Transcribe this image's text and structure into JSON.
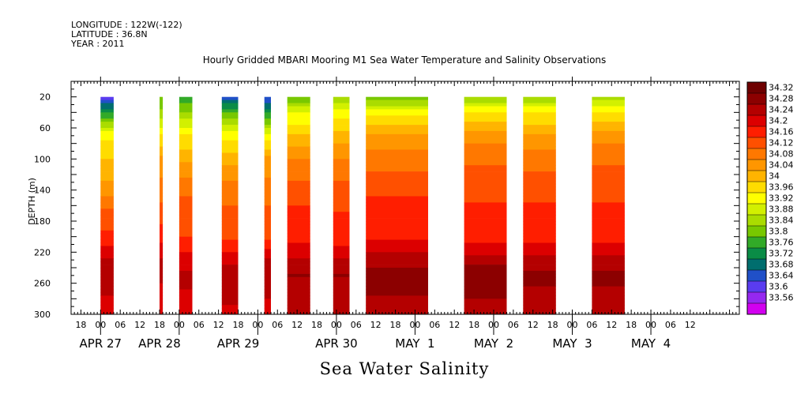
{
  "header": {
    "longitude": "LONGITUDE : 122W(-122)",
    "latitude": "LATITUDE : 36.8N",
    "year": "YEAR : 2011"
  },
  "chart_data": {
    "type": "heatmap",
    "title": "Hourly Gridded MBARI Mooring M1 Sea Water Temperature and Salinity Observations",
    "xlabel": "Sea Water Salinity",
    "ylabel": "DEPTH (m)",
    "y_axis": {
      "ticks": [
        20,
        60,
        100,
        140,
        180,
        220,
        260,
        300
      ],
      "range": [
        300,
        0
      ],
      "inverted": true
    },
    "x_axis": {
      "range_hours": [
        -9,
        195
      ],
      "hour_ticks": [
        {
          "h": -6,
          "label": "18"
        },
        {
          "h": 0,
          "label": "00"
        },
        {
          "h": 6,
          "label": "06"
        },
        {
          "h": 12,
          "label": "12"
        },
        {
          "h": 18,
          "label": "18"
        },
        {
          "h": 24,
          "label": "00"
        },
        {
          "h": 30,
          "label": "06"
        },
        {
          "h": 36,
          "label": "12"
        },
        {
          "h": 42,
          "label": "18"
        },
        {
          "h": 48,
          "label": "00"
        },
        {
          "h": 54,
          "label": "06"
        },
        {
          "h": 60,
          "label": "12"
        },
        {
          "h": 66,
          "label": "18"
        },
        {
          "h": 72,
          "label": "00"
        },
        {
          "h": 78,
          "label": "06"
        },
        {
          "h": 84,
          "label": "12"
        },
        {
          "h": 90,
          "label": "18"
        },
        {
          "h": 96,
          "label": "00"
        },
        {
          "h": 102,
          "label": "06"
        },
        {
          "h": 108,
          "label": "12"
        },
        {
          "h": 114,
          "label": "18"
        },
        {
          "h": 120,
          "label": "00"
        },
        {
          "h": 126,
          "label": "06"
        },
        {
          "h": 132,
          "label": "12"
        },
        {
          "h": 138,
          "label": "18"
        },
        {
          "h": 144,
          "label": "00"
        },
        {
          "h": 150,
          "label": "06"
        },
        {
          "h": 156,
          "label": "12"
        },
        {
          "h": 162,
          "label": "18"
        },
        {
          "h": 168,
          "label": "00"
        },
        {
          "h": 174,
          "label": "06"
        },
        {
          "h": 180,
          "label": "12"
        }
      ],
      "date_labels": [
        {
          "h": 0,
          "label": "APR 27"
        },
        {
          "h": 18,
          "label": "APR 28"
        },
        {
          "h": 42,
          "label": "APR 29"
        },
        {
          "h": 72,
          "label": "APR 30"
        },
        {
          "h": 96,
          "label": "MAY  1"
        },
        {
          "h": 120,
          "label": "MAY  2"
        },
        {
          "h": 144,
          "label": "MAY  3"
        },
        {
          "h": 168,
          "label": "MAY  4"
        }
      ]
    },
    "colorbar": {
      "levels": [
        34.32,
        34.28,
        34.24,
        34.2,
        34.16,
        34.12,
        34.08,
        34.04,
        34,
        33.96,
        33.92,
        33.88,
        33.84,
        33.8,
        33.76,
        33.72,
        33.68,
        33.64,
        33.6,
        33.56
      ],
      "labels": [
        "34.32",
        "34.28",
        "34.24",
        "34.2",
        "34.16",
        "34.12",
        "34.08",
        "34.04",
        "34",
        "33.96",
        "33.92",
        "33.88",
        "33.84",
        "33.8",
        "33.76",
        "33.72",
        "33.68",
        "33.64",
        "33.6",
        "33.56"
      ],
      "colors": [
        "#6e0000",
        "#8c0000",
        "#b40000",
        "#dc0000",
        "#ff1e00",
        "#ff5000",
        "#ff7800",
        "#ff9600",
        "#ffb400",
        "#ffdc00",
        "#ffff00",
        "#d2f000",
        "#aadc00",
        "#78c800",
        "#32aa28",
        "#0a8c46",
        "#006e6e",
        "#2050c8",
        "#5a3cf0",
        "#9628f0",
        "#d200f0"
      ]
    },
    "data_segments": [
      {
        "start": 0,
        "end": 4,
        "profile": [
          33.6,
          33.76,
          33.95,
          34.0,
          34.06,
          34.13,
          34.17,
          34.25,
          34.26,
          34.22
        ]
      },
      {
        "start": 18,
        "end": 19,
        "profile": [
          33.8,
          33.85,
          33.96,
          34.05,
          34.1,
          34.14,
          34.18,
          34.24,
          34.25,
          34.2
        ]
      },
      {
        "start": 24,
        "end": 28,
        "profile": [
          33.76,
          33.84,
          33.96,
          34.03,
          34.11,
          34.14,
          34.16,
          34.22,
          34.25,
          34.22
        ]
      },
      {
        "start": 37,
        "end": 42,
        "profile": [
          33.65,
          33.8,
          33.95,
          34.02,
          34.1,
          34.13,
          34.15,
          34.23,
          34.27,
          34.23
        ]
      },
      {
        "start": 50,
        "end": 52,
        "profile": [
          33.64,
          33.75,
          33.94,
          34.05,
          34.1,
          34.13,
          34.15,
          34.24,
          34.27,
          34.22
        ]
      },
      {
        "start": 57,
        "end": 64,
        "profile": [
          33.8,
          33.92,
          34.0,
          34.08,
          34.14,
          34.17,
          34.18,
          34.24,
          34.28,
          34.24
        ]
      },
      {
        "start": 71,
        "end": 76,
        "profile": [
          33.84,
          33.94,
          34.02,
          34.08,
          34.14,
          34.16,
          34.17,
          34.25,
          34.28,
          34.24
        ]
      },
      {
        "start": 81,
        "end": 100,
        "profile": [
          33.82,
          33.94,
          34.04,
          34.1,
          34.15,
          34.18,
          34.19,
          34.26,
          34.3,
          34.26
        ]
      },
      {
        "start": 111,
        "end": 124,
        "profile": [
          33.84,
          33.96,
          34.06,
          34.11,
          34.15,
          34.17,
          34.18,
          34.26,
          34.31,
          34.26
        ]
      },
      {
        "start": 129,
        "end": 139,
        "profile": [
          33.84,
          33.96,
          34.04,
          34.1,
          34.15,
          34.17,
          34.18,
          34.25,
          34.29,
          34.25
        ]
      },
      {
        "start": 150,
        "end": 160,
        "profile": [
          33.86,
          33.96,
          34.06,
          34.11,
          34.15,
          34.17,
          34.18,
          34.25,
          34.29,
          34.25
        ]
      }
    ],
    "profile_depths": [
      20,
      40,
      70,
      100,
      140,
      170,
      200,
      230,
      250,
      300
    ],
    "grid": false,
    "legend": "right colorbar"
  }
}
